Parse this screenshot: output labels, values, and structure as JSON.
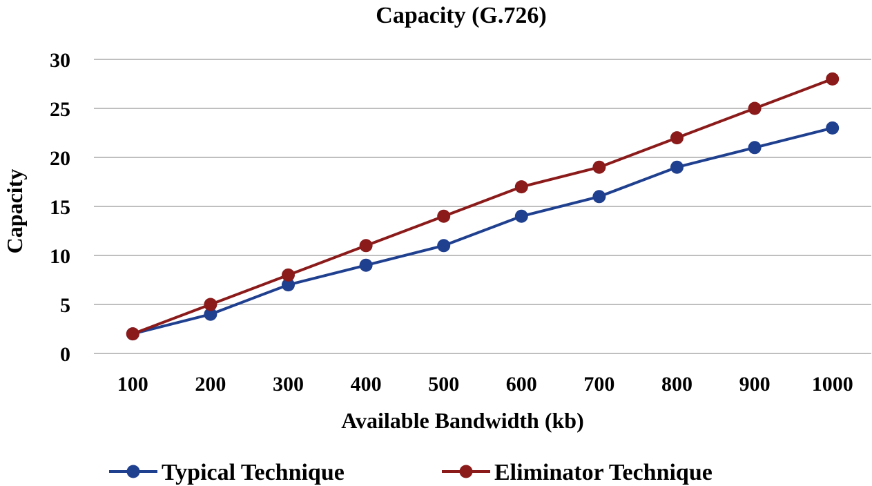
{
  "chart_data": {
    "type": "line",
    "title": "Capacity (G.726)",
    "xlabel": "Available Bandwidth (kb)",
    "ylabel": "Capacity",
    "categories": [
      "100",
      "200",
      "300",
      "400",
      "500",
      "600",
      "700",
      "800",
      "900",
      "1000"
    ],
    "ylim": [
      0,
      30
    ],
    "yticks": [
      0,
      5,
      10,
      15,
      20,
      25,
      30
    ],
    "grid": true,
    "legend_position": "bottom",
    "series": [
      {
        "name": "Typical Technique",
        "color": "#1f3f8f",
        "values": [
          2,
          4,
          7,
          9,
          11,
          14,
          16,
          19,
          21,
          23
        ]
      },
      {
        "name": "Eliminator Technique",
        "color": "#8b1a1a",
        "values": [
          2,
          5,
          8,
          11,
          14,
          17,
          19,
          22,
          25,
          28
        ]
      }
    ]
  }
}
